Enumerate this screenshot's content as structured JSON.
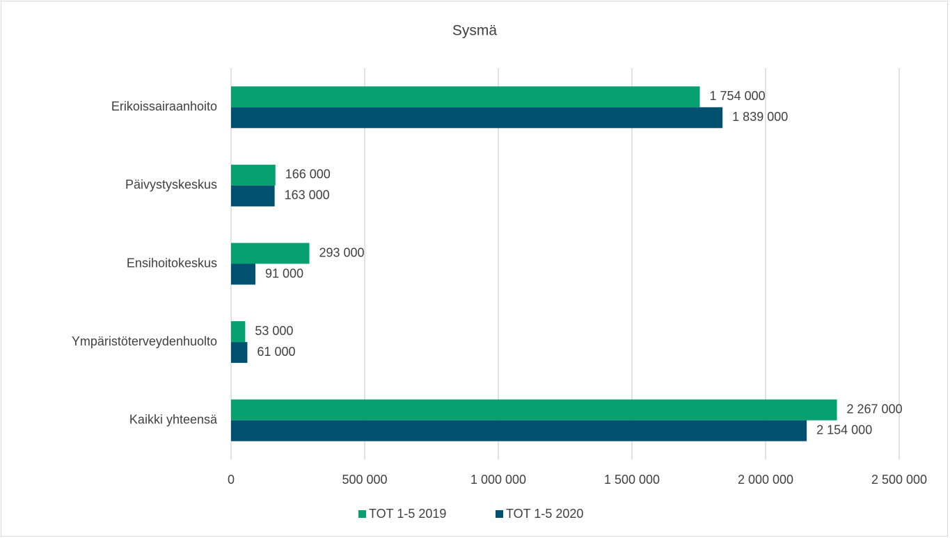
{
  "chart_data": {
    "type": "bar",
    "orientation": "horizontal",
    "title": "Sysmä",
    "categories": [
      "Erikoissairaanhoito",
      "Päivystyskeskus",
      "Ensihoitokeskus",
      "Ympäristöterveydenhuolto",
      "Kaikki yhteensä"
    ],
    "series": [
      {
        "name": "TOT 1-5 2019",
        "color": "#07a06f",
        "values": [
          1754000,
          166000,
          293000,
          53000,
          2267000
        ],
        "value_labels": [
          "1 754 000",
          "166 000",
          "293 000",
          "53 000",
          "2 267 000"
        ]
      },
      {
        "name": "TOT 1-5 2020",
        "color": "#00506f",
        "values": [
          1839000,
          163000,
          91000,
          61000,
          2154000
        ],
        "value_labels": [
          "1 839 000",
          "163 000",
          "91 000",
          "61 000",
          "2 154 000"
        ]
      }
    ],
    "xlim": [
      0,
      2500000
    ],
    "xticks": [
      0,
      {
        "value": 500000,
        "label": "500 000"
      },
      {
        "value": 1000000,
        "label": "1 000 000"
      },
      {
        "value": 1500000,
        "label": "1 500 000"
      },
      {
        "value": 2000000,
        "label": "2 000 000"
      },
      {
        "value": 2500000,
        "label": "2 500 000"
      }
    ],
    "grid": true,
    "legend": "bottom"
  }
}
